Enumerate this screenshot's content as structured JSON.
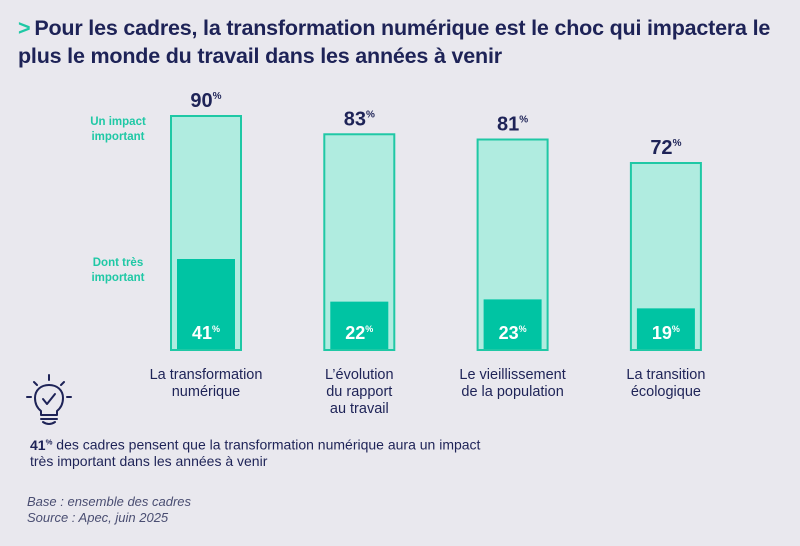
{
  "title": {
    "chevron": ">",
    "text": "Pour les cadres, la transformation numérique est le choc qui impactera le plus le monde du travail dans les années à venir"
  },
  "legend": {
    "outer_label": "Un impact important",
    "inner_label": "Dont très important"
  },
  "colors": {
    "background": "#e9e8ee",
    "outer_fill": "#b0ece0",
    "outer_stroke": "#1fc8a5",
    "inner_fill": "#00c4a3",
    "text_dark": "#1e2357",
    "text_accent": "#1fc8a5"
  },
  "chart_data": {
    "type": "bar",
    "title": "Pour les cadres, la transformation numérique est le choc qui impactera le plus le monde du travail dans les années à venir",
    "xlabel": "",
    "ylabel": "",
    "ylim": [
      0,
      100
    ],
    "grid": false,
    "unit": "%",
    "categories": [
      "La transformation numérique",
      "L'évolution du rapport au travail",
      "Le vieillissement de la population",
      "La transition écologique"
    ],
    "category_lines": [
      [
        "La transformation",
        "numérique"
      ],
      [
        "L’évolution",
        "du rapport",
        "au travail"
      ],
      [
        "Le vieillissement",
        "de la population"
      ],
      [
        "La transition",
        "écologique"
      ]
    ],
    "series": [
      {
        "name": "Un impact important",
        "values": [
          90,
          83,
          81,
          72
        ]
      },
      {
        "name": "Dont très important",
        "values": [
          41,
          22,
          23,
          19
        ]
      }
    ],
    "legend_position": "left"
  },
  "insight": {
    "value": "41",
    "unit": "%",
    "text": " des cadres pensent que la transformation numérique aura un impact très important dans les années à venir"
  },
  "footnote": {
    "base": "Base : ensemble des cadres",
    "source": "Source : Apec, juin 2025"
  }
}
